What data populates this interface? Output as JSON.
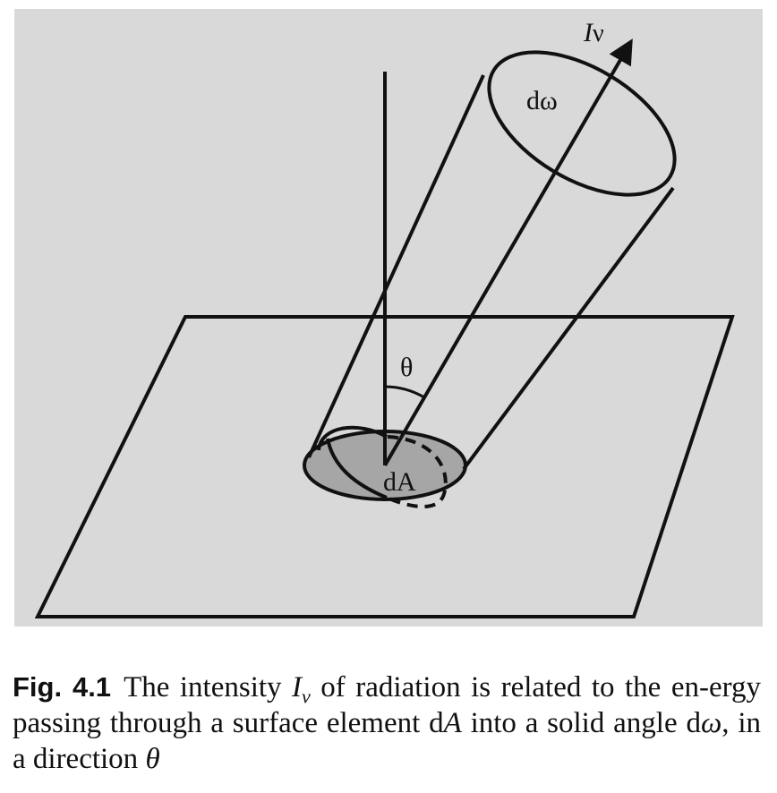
{
  "colors": {
    "panel_bg": "#d9d9d9",
    "stroke": "#111111",
    "area_fill": "#a6a6a6"
  },
  "diagram": {
    "beam_label_main": "I",
    "beam_label_sub": "ν",
    "solid_angle_label": "dω",
    "angle_label": "θ",
    "area_label": "dA"
  },
  "caption": {
    "fig_label": "Fig. 4.1",
    "part1": "The intensity ",
    "i_symbol": "I",
    "i_subscript": "ν",
    "part2": " of radiation is related to the en-ergy passing through a surface element d",
    "a_symbol": "A",
    "part3": " into a solid angle d",
    "omega_symbol": "ω",
    "part4": ", in a direction ",
    "theta_symbol": "θ"
  }
}
